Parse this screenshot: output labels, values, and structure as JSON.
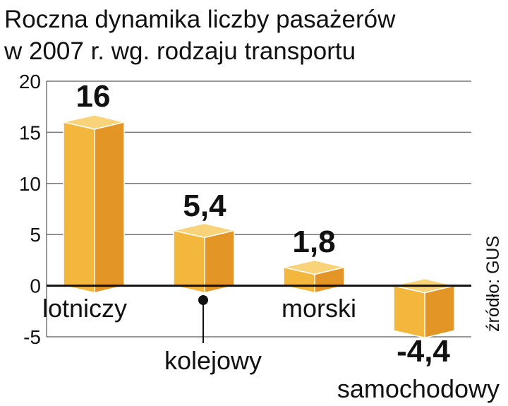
{
  "chart_data": {
    "type": "bar",
    "title": "Roczna dynamika liczby pasażerów w 2007 r. wg. rodzaju transportu",
    "title_lines": [
      "Roczna dynamika liczby pasażerów",
      "w 2007 r. wg. rodzaju transportu"
    ],
    "categories": [
      "lotniczy",
      "kolejowy",
      "morski",
      "samochodowy"
    ],
    "values": [
      16,
      5.4,
      1.8,
      -4.4
    ],
    "value_labels": [
      "16",
      "5,4",
      "1,8",
      "-4,4"
    ],
    "yticks": [
      20,
      15,
      10,
      5,
      0,
      -5
    ],
    "ylim": [
      -5,
      20
    ],
    "xlabel": "",
    "ylabel": "",
    "grid": true,
    "source": "źródło: GUS"
  },
  "colors": {
    "bar_front": "#f3b73e",
    "bar_side": "#e39526",
    "bar_top": "#f8d37a",
    "bar_edge": "#ffffff",
    "highlight_value": "#c8102e",
    "grid": "#777777",
    "axis": "#111111"
  }
}
